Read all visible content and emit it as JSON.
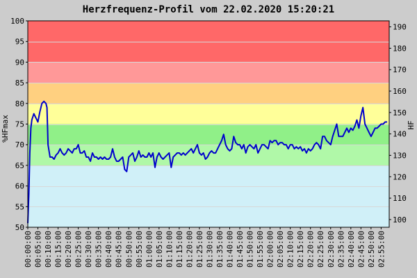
{
  "chart_data": {
    "type": "line",
    "title": "Herzfrequenz-Profil vom 22.02.2020 15:20:21",
    "ylabel": "%HFmax",
    "y2label": "HF",
    "ylim": [
      50,
      100
    ],
    "y2lim": [
      96.4,
      192.8
    ],
    "xlim_minutes": [
      0,
      179
    ],
    "yticks": [
      "50",
      "55",
      "60",
      "65",
      "70",
      "75",
      "80",
      "85",
      "90",
      "95",
      "100"
    ],
    "y2ticks": [
      "100",
      "110",
      "120",
      "130",
      "140",
      "150",
      "160",
      "170",
      "180",
      "190"
    ],
    "xticks": [
      "00:00:00",
      "00:05:00",
      "00:10:00",
      "00:15:00",
      "00:20:00",
      "00:25:00",
      "00:30:00",
      "00:35:00",
      "00:40:00",
      "00:45:00",
      "00:50:00",
      "00:55:00",
      "01:00:00",
      "01:05:00",
      "01:10:00",
      "01:15:00",
      "01:20:00",
      "01:25:00",
      "01:30:00",
      "01:35:00",
      "01:40:00",
      "01:45:00",
      "01:50:00",
      "01:55:00",
      "02:00:00",
      "02:05:00",
      "02:10:00",
      "02:15:00",
      "02:20:00",
      "02:25:00",
      "02:30:00",
      "02:35:00",
      "02:40:00",
      "02:45:00",
      "02:50:00",
      "02:55:00"
    ],
    "grid": true,
    "zones": [
      {
        "from": 50,
        "to": 65,
        "color": "#d0f0f8"
      },
      {
        "from": 65,
        "to": 70,
        "color": "#b0f8a8"
      },
      {
        "from": 70,
        "to": 75,
        "color": "#90f088"
      },
      {
        "from": 75,
        "to": 80,
        "color": "#ffff99"
      },
      {
        "from": 80,
        "to": 85,
        "color": "#ffd080"
      },
      {
        "from": 85,
        "to": 90,
        "color": "#ff9898"
      },
      {
        "from": 90,
        "to": 100,
        "color": "#ff6868"
      }
    ],
    "series": [
      {
        "color": "#0000cc",
        "points": [
          [
            0,
            51
          ],
          [
            0.5,
            58
          ],
          [
            1,
            68
          ],
          [
            1.5,
            74
          ],
          [
            2,
            76
          ],
          [
            3,
            77.5
          ],
          [
            4,
            76.5
          ],
          [
            5,
            75.5
          ],
          [
            6,
            78
          ],
          [
            7,
            80
          ],
          [
            8,
            80.5
          ],
          [
            9,
            80
          ],
          [
            9.5,
            79
          ],
          [
            10,
            70
          ],
          [
            11,
            67
          ],
          [
            12,
            67
          ],
          [
            13,
            66.5
          ],
          [
            14,
            67.5
          ],
          [
            15,
            68
          ],
          [
            16,
            69
          ],
          [
            17,
            68
          ],
          [
            18,
            67.5
          ],
          [
            19,
            68
          ],
          [
            20,
            69
          ],
          [
            21,
            68.5
          ],
          [
            22,
            68
          ],
          [
            23,
            69
          ],
          [
            24,
            69
          ],
          [
            25,
            70
          ],
          [
            26,
            68
          ],
          [
            27,
            68
          ],
          [
            28,
            68.5
          ],
          [
            29,
            67
          ],
          [
            30,
            67
          ],
          [
            31,
            66
          ],
          [
            32,
            68
          ],
          [
            33,
            67
          ],
          [
            34,
            67
          ],
          [
            35,
            66.5
          ],
          [
            36,
            67
          ],
          [
            37,
            66.5
          ],
          [
            38,
            67
          ],
          [
            39,
            66.5
          ],
          [
            40,
            66.5
          ],
          [
            41,
            67
          ],
          [
            42,
            69
          ],
          [
            43,
            67
          ],
          [
            44,
            66
          ],
          [
            45,
            66
          ],
          [
            46,
            66.5
          ],
          [
            47,
            67
          ],
          [
            48,
            64
          ],
          [
            49,
            63.5
          ],
          [
            50,
            67
          ],
          [
            51,
            67.5
          ],
          [
            52,
            68
          ],
          [
            53,
            66
          ],
          [
            54,
            67
          ],
          [
            55,
            68.5
          ],
          [
            56,
            67
          ],
          [
            57,
            67.5
          ],
          [
            58,
            67
          ],
          [
            59,
            67
          ],
          [
            60,
            68
          ],
          [
            61,
            67
          ],
          [
            62,
            68
          ],
          [
            63,
            64.5
          ],
          [
            64,
            67
          ],
          [
            65,
            68
          ],
          [
            66,
            67
          ],
          [
            67,
            66.5
          ],
          [
            68,
            67
          ],
          [
            69,
            67.5
          ],
          [
            70,
            68
          ],
          [
            71,
            64.5
          ],
          [
            72,
            67
          ],
          [
            73,
            67.5
          ],
          [
            74,
            68
          ],
          [
            75,
            68
          ],
          [
            76,
            67.5
          ],
          [
            77,
            68
          ],
          [
            78,
            67.5
          ],
          [
            79,
            68
          ],
          [
            80,
            68.5
          ],
          [
            81,
            69
          ],
          [
            82,
            68
          ],
          [
            83,
            69
          ],
          [
            84,
            70
          ],
          [
            85,
            68
          ],
          [
            86,
            67.5
          ],
          [
            87,
            68
          ],
          [
            88,
            66.5
          ],
          [
            89,
            67
          ],
          [
            90,
            68
          ],
          [
            91,
            68.5
          ],
          [
            92,
            68
          ],
          [
            93,
            68
          ],
          [
            94,
            69
          ],
          [
            95,
            70
          ],
          [
            96,
            71
          ],
          [
            97,
            72.5
          ],
          [
            98,
            70
          ],
          [
            99,
            69
          ],
          [
            100,
            68.5
          ],
          [
            101,
            69
          ],
          [
            102,
            72
          ],
          [
            103,
            70.5
          ],
          [
            104,
            70
          ],
          [
            105,
            70
          ],
          [
            106,
            69
          ],
          [
            107,
            70
          ],
          [
            108,
            68
          ],
          [
            109,
            69.5
          ],
          [
            110,
            70
          ],
          [
            111,
            69.5
          ],
          [
            112,
            69
          ],
          [
            113,
            70
          ],
          [
            114,
            68
          ],
          [
            115,
            69
          ],
          [
            116,
            70
          ],
          [
            117,
            70
          ],
          [
            118,
            69.5
          ],
          [
            119,
            69
          ],
          [
            120,
            71
          ],
          [
            121,
            70.5
          ],
          [
            122,
            71
          ],
          [
            123,
            71
          ],
          [
            124,
            70
          ],
          [
            125,
            70.5
          ],
          [
            126,
            70.5
          ],
          [
            127,
            70
          ],
          [
            128,
            70
          ],
          [
            129,
            69
          ],
          [
            130,
            70
          ],
          [
            131,
            70
          ],
          [
            132,
            69
          ],
          [
            133,
            69.5
          ],
          [
            134,
            69
          ],
          [
            135,
            69.5
          ],
          [
            136,
            68.5
          ],
          [
            137,
            69
          ],
          [
            138,
            68
          ],
          [
            139,
            69
          ],
          [
            140,
            68.5
          ],
          [
            141,
            69
          ],
          [
            142,
            70
          ],
          [
            143,
            70.5
          ],
          [
            144,
            70
          ],
          [
            145,
            69
          ],
          [
            146,
            72
          ],
          [
            147,
            72
          ],
          [
            148,
            71
          ],
          [
            149,
            70.5
          ],
          [
            150,
            70
          ],
          [
            151,
            72
          ],
          [
            152,
            73.5
          ],
          [
            153,
            75
          ],
          [
            154,
            72
          ],
          [
            155,
            72
          ],
          [
            156,
            72
          ],
          [
            157,
            73
          ],
          [
            158,
            74
          ],
          [
            159,
            73
          ],
          [
            160,
            74
          ],
          [
            161,
            73.5
          ],
          [
            162,
            74.5
          ],
          [
            163,
            76
          ],
          [
            164,
            74
          ],
          [
            165,
            77
          ],
          [
            166,
            79
          ],
          [
            167,
            75
          ],
          [
            168,
            74
          ],
          [
            169,
            73
          ],
          [
            170,
            72
          ],
          [
            171,
            73
          ],
          [
            172,
            74
          ],
          [
            173,
            74
          ],
          [
            174,
            74.5
          ],
          [
            175,
            75
          ],
          [
            176,
            75
          ],
          [
            177,
            75.5
          ],
          [
            178,
            75.5
          ]
        ]
      }
    ]
  }
}
